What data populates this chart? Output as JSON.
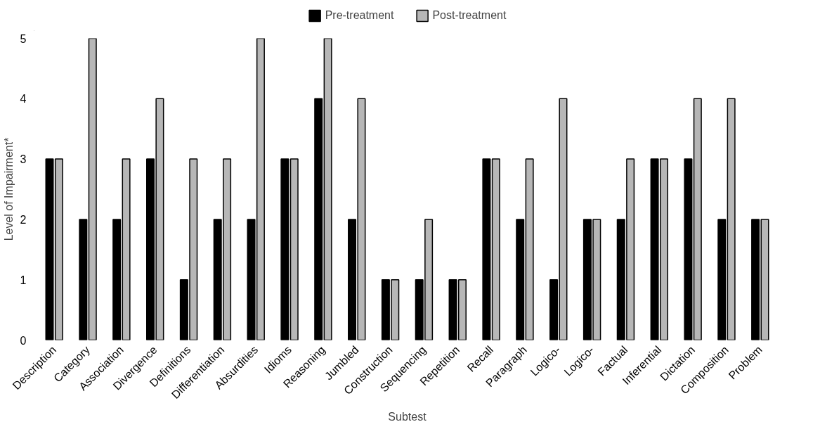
{
  "chart_data": {
    "type": "bar",
    "xlabel": "Subtest",
    "ylabel": "Level of Impairment*",
    "categories": [
      "Description",
      "Category",
      "Association",
      "Divergence",
      "Definitions",
      "Differentiation",
      "Absurdities",
      "Idioms",
      "Reasoning",
      "Jumbled",
      "Construction",
      "Sequencing",
      "Repetition",
      "Recall",
      "Paragraph",
      "Logico-",
      "Logico-",
      "Factual",
      "Inferential",
      "Dictation",
      "Composition",
      "Problem"
    ],
    "series": [
      {
        "name": "Pre-treatment",
        "color": "#000000",
        "values": [
          3,
          2,
          2,
          3,
          1,
          2,
          2,
          3,
          4,
          2,
          1,
          1,
          1,
          3,
          2,
          1,
          2,
          2,
          3,
          3,
          2,
          2
        ]
      },
      {
        "name": "Post-treatment",
        "color": "#b7b7b7",
        "values": [
          3,
          5,
          3,
          4,
          3,
          3,
          5,
          3,
          5,
          4,
          1,
          2,
          1,
          3,
          3,
          4,
          2,
          3,
          3,
          4,
          4,
          2
        ]
      }
    ],
    "ylim": [
      0,
      5
    ],
    "yticks": [
      0,
      1,
      2,
      3,
      4,
      5
    ],
    "grid": false,
    "legend": "top"
  }
}
